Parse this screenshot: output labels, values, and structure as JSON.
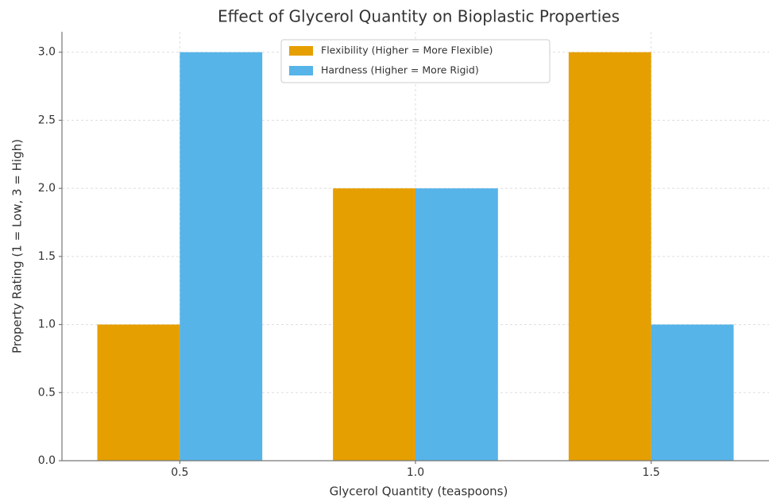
{
  "chart_data": {
    "type": "bar",
    "title": "Effect of Glycerol Quantity on Bioplastic Properties",
    "x_label": "Glycerol Quantity (teaspoons)",
    "y_label": "Property Rating (1 = Low, 3 = High)",
    "categories": [
      "0.5",
      "1.0",
      "1.5"
    ],
    "series": [
      {
        "name": "Flexibility (Higher = More Flexible)",
        "color": "#E69F00",
        "values": [
          1,
          2,
          3
        ]
      },
      {
        "name": "Hardness (Higher = More Rigid)",
        "color": "#56B4E9",
        "values": [
          3,
          2,
          1
        ]
      }
    ],
    "ylim": [
      0,
      3.15
    ],
    "yticks": [
      {
        "value": 0,
        "label": "0.0"
      },
      {
        "value": 0.5,
        "label": "0.5"
      },
      {
        "value": 1,
        "label": "1.0"
      },
      {
        "value": 1.5,
        "label": "1.5"
      },
      {
        "value": 2,
        "label": "2.0"
      },
      {
        "value": 2.5,
        "label": "2.5"
      },
      {
        "value": 3,
        "label": "3.0"
      }
    ],
    "grid": true,
    "legend": "upper center"
  }
}
